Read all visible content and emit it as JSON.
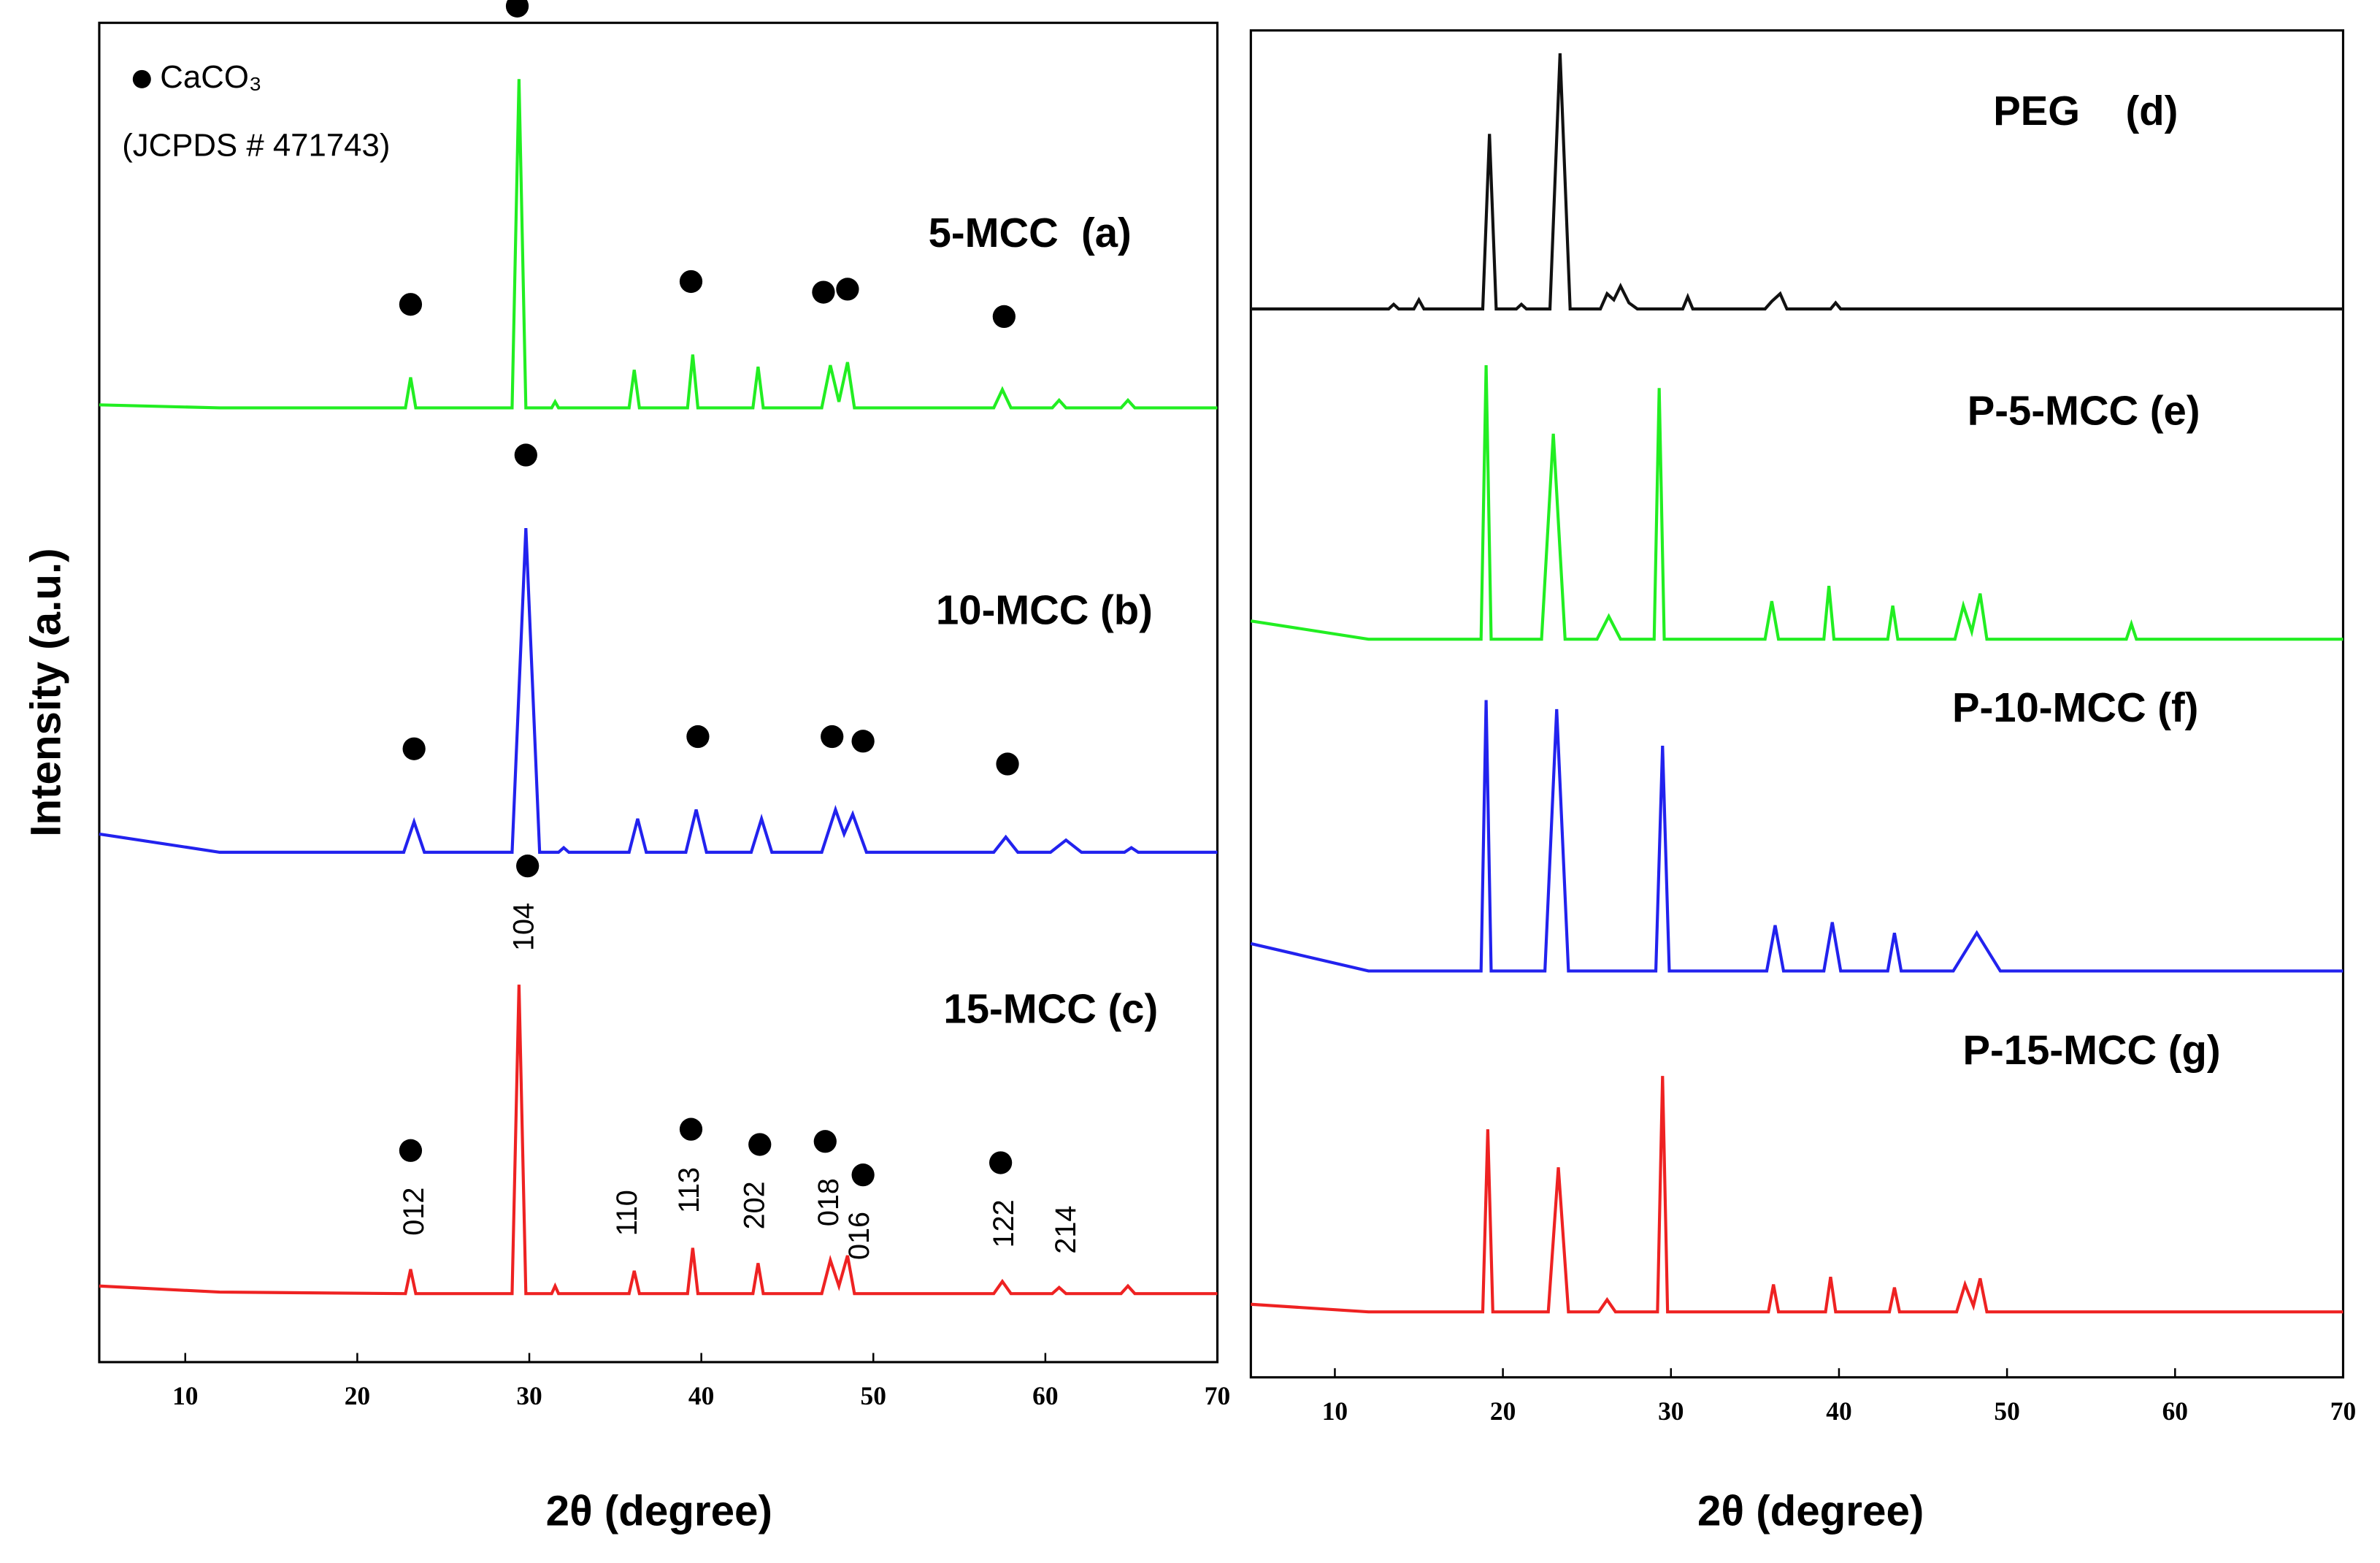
{
  "chart_data": [
    {
      "type": "line",
      "xlabel": "2θ (degree)",
      "ylabel": "Intensity (a.u.)",
      "xlim": [
        5,
        70
      ],
      "xticks": [
        10,
        20,
        30,
        40,
        50,
        60,
        70
      ],
      "legend": {
        "marker_label": "CaCO₃",
        "note": "(JCPDS # 471743)"
      },
      "series": [
        {
          "name": "5-MCC  (a)",
          "color": "#22ee22",
          "x": [
            5,
            12,
            22.8,
            23.1,
            23.4,
            29.0,
            29.4,
            29.8,
            31.3,
            31.5,
            31.7,
            35.8,
            36.1,
            36.4,
            39.2,
            39.5,
            39.8,
            43.0,
            43.3,
            43.6,
            47.0,
            47.5,
            48.0,
            48.5,
            48.9,
            57.0,
            57.5,
            58.0,
            60.4,
            60.8,
            61.2,
            64.4,
            64.8,
            65.2,
            70
          ],
          "values": [
            2,
            0,
            0,
            20,
            0,
            0,
            216,
            0,
            0,
            4,
            0,
            0,
            25,
            0,
            0,
            35,
            0,
            0,
            27,
            0,
            0,
            28,
            4,
            30,
            0,
            0,
            12,
            0,
            0,
            5,
            0,
            0,
            5,
            0,
            0
          ],
          "markers": [
            23.1,
            29.3,
            39.4,
            47.1,
            48.5,
            57.6
          ]
        },
        {
          "name": "10-MCC (b)",
          "color": "#2222ee",
          "x": [
            5,
            12,
            22.7,
            23.3,
            23.9,
            29.0,
            29.8,
            30.6,
            31.7,
            32.0,
            32.3,
            35.8,
            36.3,
            36.8,
            39.1,
            39.7,
            40.3,
            42.9,
            43.5,
            44.1,
            47.0,
            47.8,
            48.3,
            48.8,
            49.6,
            57.0,
            57.7,
            58.4,
            60.3,
            61.2,
            62.1,
            64.6,
            65.0,
            65.4,
            70
          ],
          "values": [
            12,
            0,
            0,
            20,
            0,
            0,
            213,
            0,
            0,
            3,
            0,
            0,
            22,
            0,
            0,
            28,
            0,
            0,
            22,
            0,
            0,
            28,
            12,
            25,
            0,
            0,
            10,
            0,
            0,
            8,
            0,
            0,
            3,
            0,
            0
          ],
          "markers": [
            23.3,
            29.8,
            39.8,
            47.6,
            49.4,
            57.8
          ]
        },
        {
          "name": "15-MCC (c)",
          "color": "#ee2222",
          "x": [
            5,
            12,
            22.8,
            23.1,
            23.4,
            29.0,
            29.4,
            29.8,
            31.3,
            31.5,
            31.7,
            35.8,
            36.1,
            36.4,
            39.2,
            39.5,
            39.8,
            43.0,
            43.3,
            43.6,
            47.0,
            47.5,
            48.0,
            48.5,
            48.9,
            57.0,
            57.5,
            58.0,
            60.4,
            60.8,
            61.2,
            64.4,
            64.8,
            65.2,
            70
          ],
          "values": [
            5,
            1,
            0,
            16,
            0,
            0,
            203,
            0,
            0,
            5,
            0,
            0,
            15,
            0,
            0,
            30,
            0,
            0,
            20,
            0,
            0,
            22,
            5,
            25,
            0,
            0,
            8,
            0,
            0,
            4,
            0,
            0,
            5,
            0,
            0
          ],
          "markers": [
            23.1,
            29.9,
            39.4,
            43.4,
            47.2,
            49.4,
            57.4
          ],
          "annotations": [
            {
              "text": "012",
              "x": 23.4
            },
            {
              "text": "104",
              "x": 29.8
            },
            {
              "text": "110",
              "x": 35.8
            },
            {
              "text": "113",
              "x": 39.4
            },
            {
              "text": "202",
              "x": 43.2
            },
            {
              "text": "018",
              "x": 47.5
            },
            {
              "text": "016",
              "x": 49.3
            },
            {
              "text": "122",
              "x": 57.7
            },
            {
              "text": "214",
              "x": 61.3
            }
          ]
        }
      ]
    },
    {
      "type": "line",
      "xlabel": "2θ (degree)",
      "xlim": [
        5,
        70
      ],
      "xticks": [
        10,
        20,
        30,
        40,
        50,
        60,
        70
      ],
      "series": [
        {
          "name": "PEG    (d)",
          "color": "#111111",
          "x": [
            5,
            13.2,
            13.5,
            13.8,
            14.7,
            15.0,
            15.3,
            18.8,
            19.2,
            19.6,
            20.8,
            21.1,
            21.4,
            22.8,
            23.4,
            24.0,
            25.8,
            26.2,
            26.6,
            27.0,
            27.5,
            28.0,
            30.7,
            31.0,
            31.3,
            35.6,
            36.0,
            36.5,
            36.9,
            39.5,
            39.8,
            40.1,
            70
          ],
          "values": [
            0,
            0,
            3,
            0,
            0,
            6,
            0,
            0,
            115,
            0,
            0,
            3,
            0,
            0,
            168,
            0,
            0,
            10,
            6,
            15,
            4,
            0,
            0,
            8,
            0,
            0,
            5,
            10,
            0,
            0,
            4,
            0,
            0
          ]
        },
        {
          "name": "P-5-MCC (e)",
          "color": "#22ee22",
          "x": [
            5,
            12,
            18.7,
            19.0,
            19.3,
            22.3,
            23.0,
            23.7,
            25.6,
            26.3,
            27.0,
            29.0,
            29.3,
            29.6,
            35.6,
            36.0,
            36.4,
            39.1,
            39.4,
            39.7,
            42.9,
            43.2,
            43.5,
            46.9,
            47.4,
            47.9,
            48.4,
            48.8,
            57.1,
            57.4,
            57.7,
            70
          ],
          "values": [
            12,
            0,
            0,
            180,
            0,
            0,
            135,
            0,
            0,
            15,
            0,
            0,
            165,
            0,
            0,
            25,
            0,
            0,
            35,
            0,
            0,
            22,
            0,
            0,
            22,
            5,
            30,
            0,
            0,
            10,
            0,
            0
          ]
        },
        {
          "name": "P-10-MCC (f)",
          "color": "#2222ee",
          "x": [
            5,
            12,
            18.7,
            19.0,
            19.3,
            22.5,
            23.2,
            23.9,
            29.1,
            29.5,
            29.9,
            35.7,
            36.2,
            36.7,
            39.1,
            39.6,
            40.1,
            42.9,
            43.3,
            43.7,
            46.8,
            48.2,
            49.6,
            70
          ],
          "values": [
            18,
            0,
            0,
            178,
            0,
            0,
            172,
            0,
            0,
            148,
            0,
            0,
            30,
            0,
            0,
            32,
            0,
            0,
            25,
            0,
            0,
            25,
            0,
            0
          ]
        },
        {
          "name": "P-15-MCC (g)",
          "color": "#ee2222",
          "x": [
            5,
            12,
            18.8,
            19.1,
            19.4,
            22.7,
            23.3,
            23.9,
            25.7,
            26.2,
            26.7,
            29.2,
            29.5,
            29.8,
            35.8,
            36.1,
            36.4,
            39.2,
            39.5,
            39.8,
            43.0,
            43.3,
            43.6,
            47.0,
            47.5,
            48.0,
            48.4,
            48.8,
            70
          ],
          "values": [
            5,
            0,
            0,
            120,
            0,
            0,
            95,
            0,
            0,
            8,
            0,
            0,
            155,
            0,
            0,
            18,
            0,
            0,
            23,
            0,
            0,
            16,
            0,
            0,
            18,
            4,
            22,
            0,
            0
          ]
        }
      ]
    }
  ]
}
